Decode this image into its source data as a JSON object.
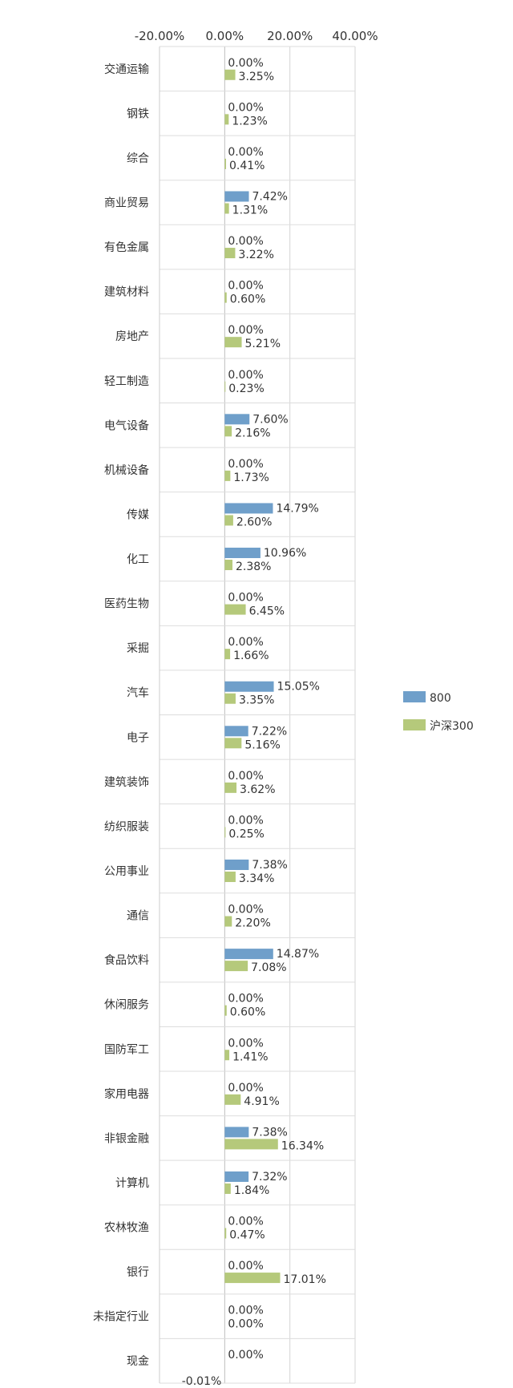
{
  "chart_data": {
    "type": "bar",
    "orientation": "horizontal",
    "xlim": [
      -0.2,
      0.4
    ],
    "x_ticks": [
      -0.2,
      0,
      0.2,
      0.4
    ],
    "x_tick_labels": [
      "-20.00%",
      "0.00%",
      "20.00%",
      "40.00%"
    ],
    "axis_position": "top",
    "grid": true,
    "legend_position": "right",
    "categories": [
      "交通运输",
      "钢铁",
      "综合",
      "商业贸易",
      "有色金属",
      "建筑材料",
      "房地产",
      "轻工制造",
      "电气设备",
      "机械设备",
      "传媒",
      "化工",
      "医药生物",
      "采掘",
      "汽车",
      "电子",
      "建筑装饰",
      "纺织服装",
      "公用事业",
      "通信",
      "食品饮料",
      "休闲服务",
      "国防军工",
      "家用电器",
      "非银金融",
      "计算机",
      "农林牧渔",
      "银行",
      "未指定行业",
      "现金"
    ],
    "series": [
      {
        "name": "800",
        "color": "#6f9fca",
        "values": [
          0,
          0,
          0,
          0.0742,
          0,
          0,
          0,
          0,
          0.076,
          0,
          0.1479,
          0.1096,
          0,
          0,
          0.1505,
          0.0722,
          0,
          0,
          0.0738,
          0,
          0.1487,
          0,
          0,
          0,
          0.0738,
          0.0732,
          0,
          0,
          0,
          0
        ],
        "labels": [
          "0.00%",
          "0.00%",
          "0.00%",
          "7.42%",
          "0.00%",
          "0.00%",
          "0.00%",
          "0.00%",
          "7.60%",
          "0.00%",
          "14.79%",
          "10.96%",
          "0.00%",
          "0.00%",
          "15.05%",
          "7.22%",
          "0.00%",
          "0.00%",
          "7.38%",
          "0.00%",
          "14.87%",
          "0.00%",
          "0.00%",
          "0.00%",
          "7.38%",
          "7.32%",
          "0.00%",
          "0.00%",
          "0.00%",
          "0.00%"
        ]
      },
      {
        "name": "沪深300",
        "color": "#b5c97b",
        "values": [
          0.0325,
          0.0123,
          0.0041,
          0.0131,
          0.0322,
          0.006,
          0.0521,
          0.0023,
          0.0216,
          0.0173,
          0.026,
          0.0238,
          0.0645,
          0.0166,
          0.0335,
          0.0516,
          0.0362,
          0.0025,
          0.0334,
          0.022,
          0.0708,
          0.006,
          0.0141,
          0.0491,
          0.1634,
          0.0184,
          0.0047,
          0.1701,
          0,
          -0.0001
        ],
        "labels": [
          "3.25%",
          "1.23%",
          "0.41%",
          "1.31%",
          "3.22%",
          "0.60%",
          "5.21%",
          "0.23%",
          "2.16%",
          "1.73%",
          "2.60%",
          "2.38%",
          "6.45%",
          "1.66%",
          "3.35%",
          "5.16%",
          "3.62%",
          "0.25%",
          "3.34%",
          "2.20%",
          "7.08%",
          "0.60%",
          "1.41%",
          "4.91%",
          "16.34%",
          "1.84%",
          "0.47%",
          "17.01%",
          "0.00%",
          "-0.01%"
        ]
      }
    ]
  }
}
